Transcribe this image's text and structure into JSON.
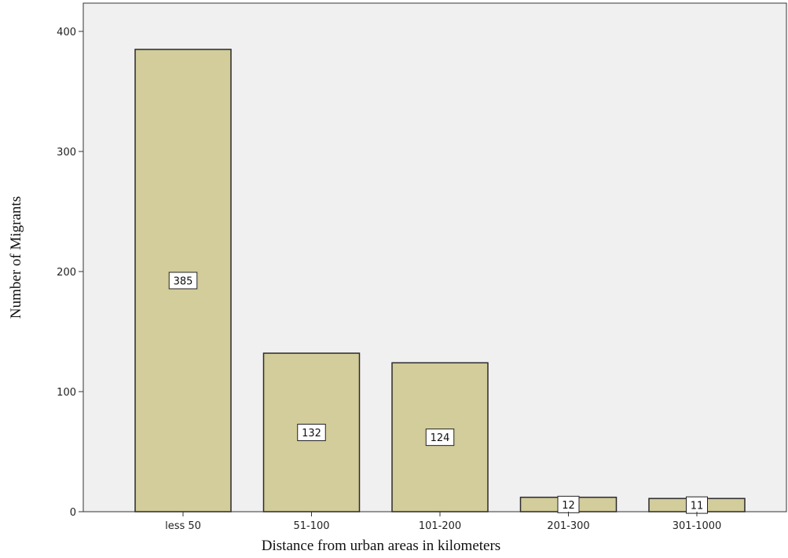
{
  "chart_data": {
    "type": "bar",
    "categories": [
      "less 50",
      "51-100",
      "101-200",
      "201-300",
      "301-1000"
    ],
    "values": [
      385,
      132,
      124,
      12,
      11
    ],
    "title": "",
    "xlabel": "Distance from urban areas in kilometers",
    "ylabel": "Number of Migrants",
    "ylim": [
      0,
      400
    ],
    "yticks": [
      0,
      100,
      200,
      300,
      400
    ],
    "grid": false,
    "legend": "none",
    "colors": {
      "bar_fill": "#d3cc9b",
      "bar_stroke": "#2a2a2a",
      "plot_background": "#f0f0f0",
      "label_box": "#ffffff"
    }
  }
}
